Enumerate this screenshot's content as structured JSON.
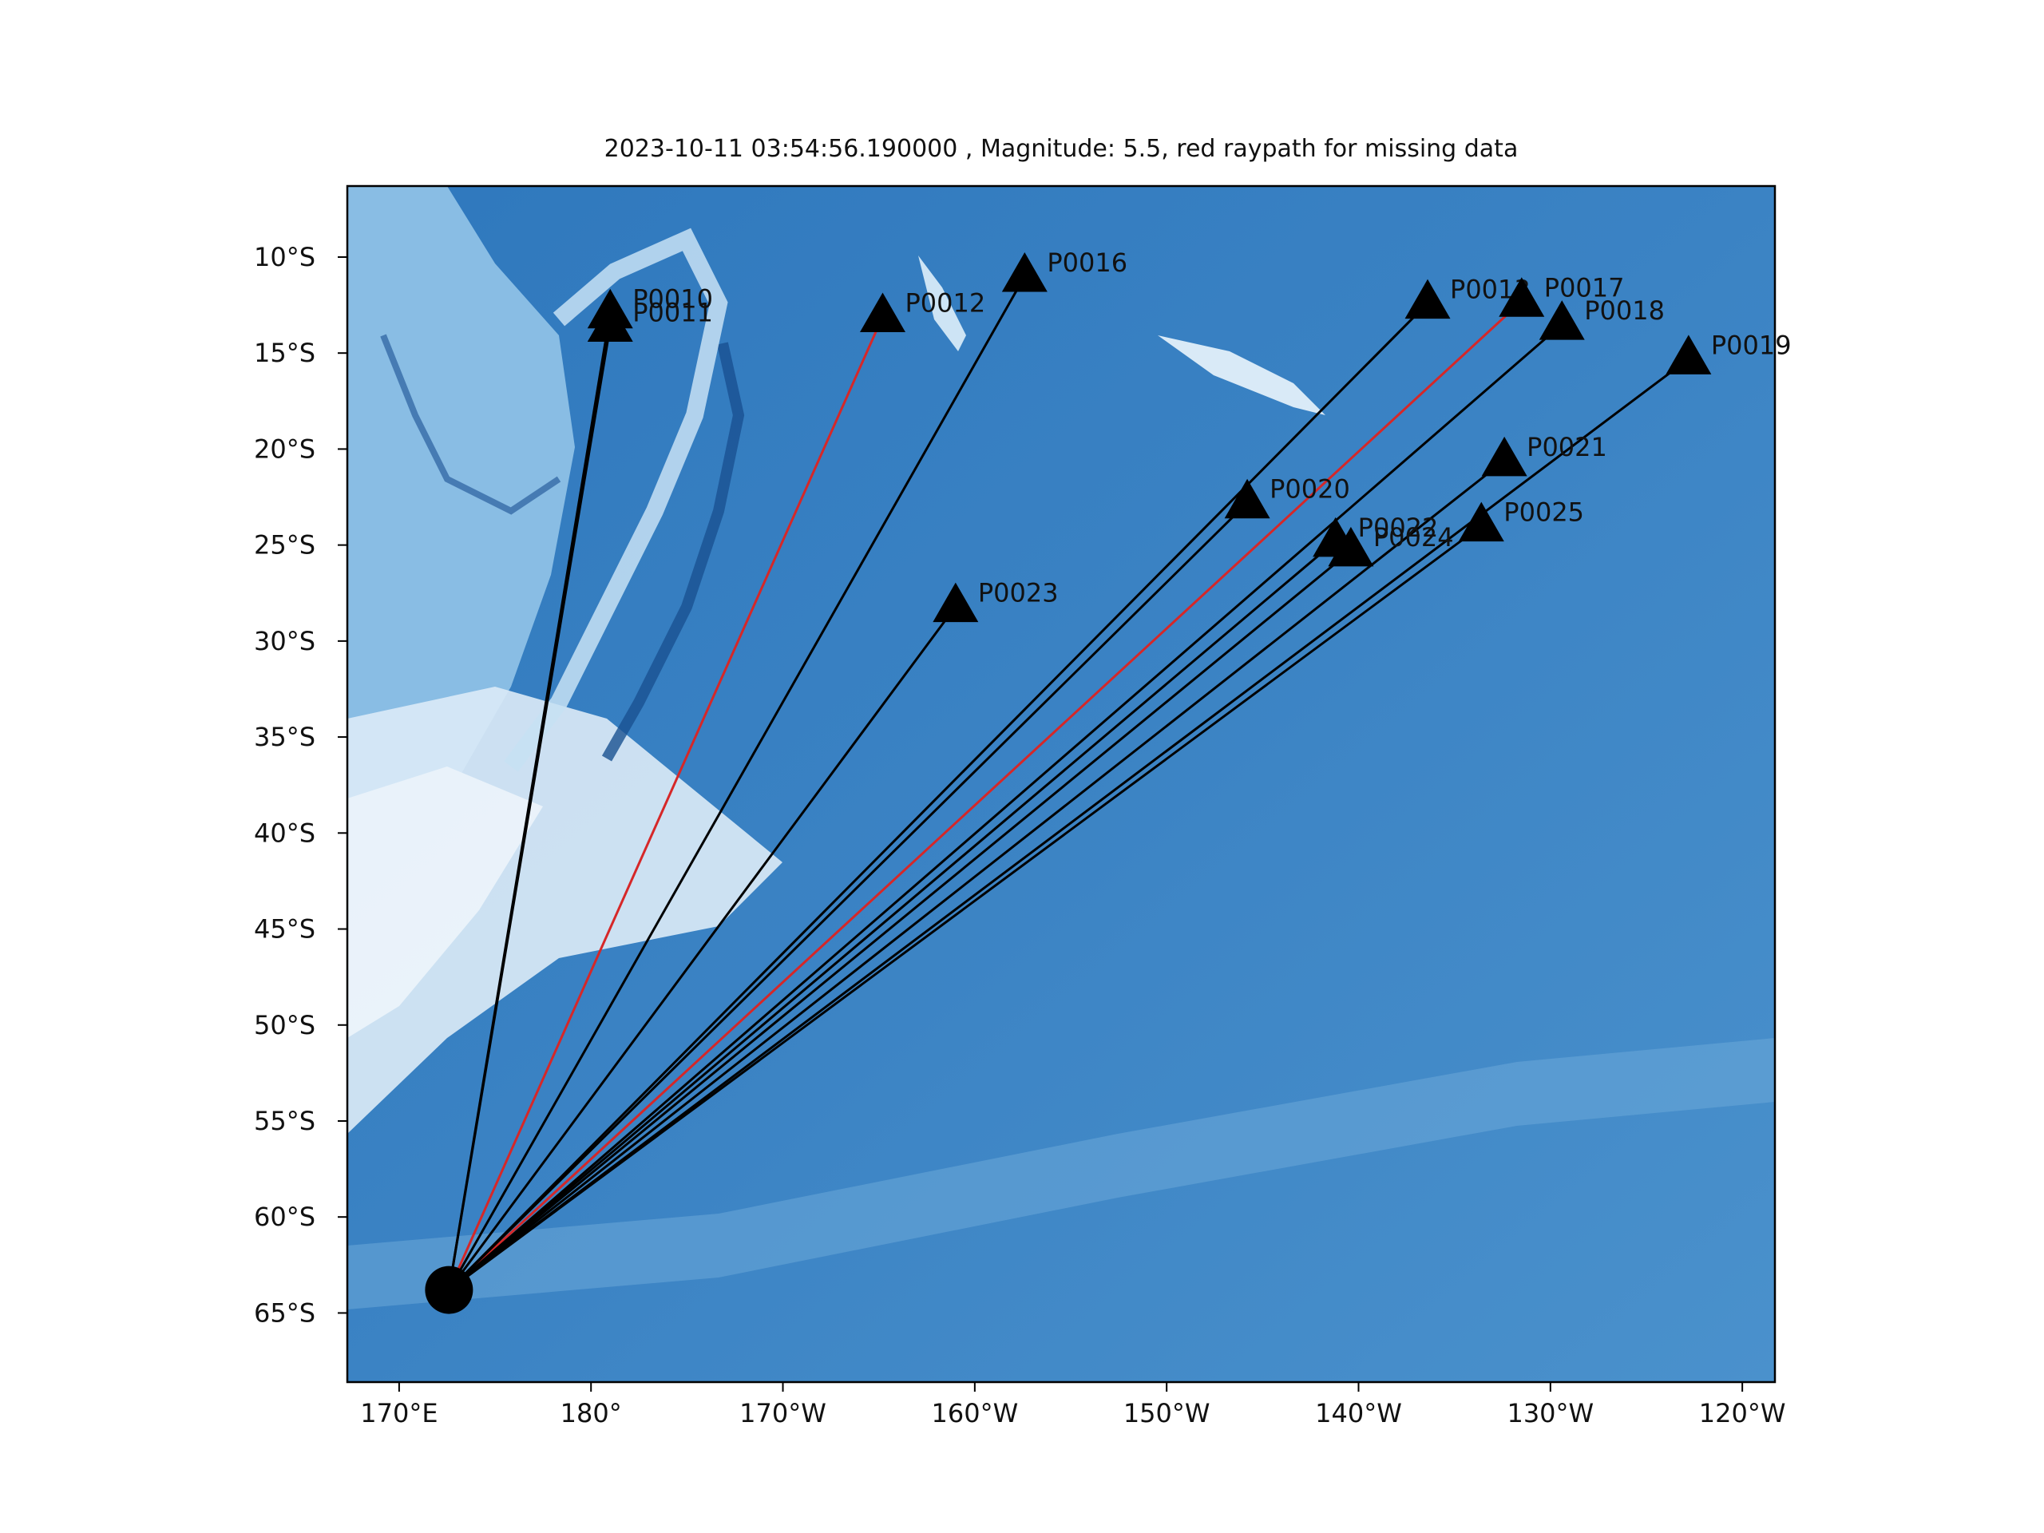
{
  "title": "2023-10-11 03:54:56.190000 , Magnitude: 5.5, red raypath for missing data",
  "map": {
    "projection": "PlateCarree",
    "lon_range": [
      167.3,
      241.7
    ],
    "lat_range": [
      -68.6,
      -6.3
    ],
    "x_ticks": [
      {
        "lon": 170,
        "label": "170°E"
      },
      {
        "lon": 180,
        "label": "180°"
      },
      {
        "lon": 190,
        "label": "170°W"
      },
      {
        "lon": 200,
        "label": "160°W"
      },
      {
        "lon": 210,
        "label": "150°W"
      },
      {
        "lon": 220,
        "label": "140°W"
      },
      {
        "lon": 230,
        "label": "130°W"
      },
      {
        "lon": 240,
        "label": "120°W"
      }
    ],
    "y_ticks": [
      {
        "lat": -10,
        "label": "10°S"
      },
      {
        "lat": -15,
        "label": "15°S"
      },
      {
        "lat": -20,
        "label": "20°S"
      },
      {
        "lat": -25,
        "label": "25°S"
      },
      {
        "lat": -30,
        "label": "30°S"
      },
      {
        "lat": -35,
        "label": "35°S"
      },
      {
        "lat": -40,
        "label": "40°S"
      },
      {
        "lat": -45,
        "label": "45°S"
      },
      {
        "lat": -50,
        "label": "50°S"
      },
      {
        "lat": -55,
        "label": "55°S"
      },
      {
        "lat": -60,
        "label": "60°S"
      },
      {
        "lat": -65,
        "label": "65°S"
      }
    ],
    "colors": {
      "ocean_deep": "#2166ac",
      "ocean": "#3f86c3",
      "shallow": "#ddeefa",
      "raypath_ok": "#000000",
      "raypath_missing": "#d62728",
      "station": "#000000",
      "event": "#000000"
    }
  },
  "chart_data": {
    "type": "map",
    "event": {
      "lon": 172.6,
      "lat": -63.8,
      "magnitude": 5.5,
      "time": "2023-10-11 03:54:56.190000"
    },
    "stations": [
      {
        "name": "P0010",
        "lon": 181.0,
        "lat": -12.9,
        "missing": false
      },
      {
        "name": "P0011",
        "lon": 181.0,
        "lat": -13.6,
        "missing": false
      },
      {
        "name": "P0012",
        "lon": 195.2,
        "lat": -13.1,
        "missing": true
      },
      {
        "name": "P0016",
        "lon": 202.6,
        "lat": -11.0,
        "missing": false
      },
      {
        "name": "P0013",
        "lon": 223.6,
        "lat": -12.4,
        "missing": false
      },
      {
        "name": "P0017",
        "lon": 228.5,
        "lat": -12.3,
        "missing": true
      },
      {
        "name": "P0018",
        "lon": 230.6,
        "lat": -13.5,
        "missing": false
      },
      {
        "name": "P0019",
        "lon": 237.2,
        "lat": -15.3,
        "missing": false
      },
      {
        "name": "P0020",
        "lon": 214.2,
        "lat": -22.8,
        "missing": false
      },
      {
        "name": "P0021",
        "lon": 227.6,
        "lat": -20.6,
        "missing": false
      },
      {
        "name": "P0022",
        "lon": 218.8,
        "lat": -24.8,
        "missing": false
      },
      {
        "name": "P0024",
        "lon": 219.6,
        "lat": -25.3,
        "missing": false
      },
      {
        "name": "P0025",
        "lon": 226.4,
        "lat": -24.0,
        "missing": false
      },
      {
        "name": "P0023",
        "lon": 199.0,
        "lat": -28.2,
        "missing": false
      }
    ]
  }
}
